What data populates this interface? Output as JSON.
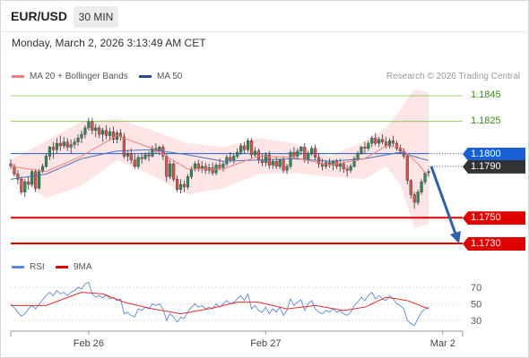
{
  "header": {
    "symbol": "EUR/USD",
    "timeframe": "30 MIN",
    "datetime": "Monday, March 2, 2026 3:13:49 AM CET"
  },
  "legend": {
    "ma20_label": "MA 20 + Bollinger Bands",
    "ma50_label": "MA 50",
    "research": "Research © 2026 Trading Central",
    "rsi_label": "RSI",
    "ma9_label": "9MA"
  },
  "colors": {
    "bullish": "#2e8b57",
    "bearish": "#d9534f",
    "ma20": "#f08080",
    "ma50": "#4a6fb5",
    "bollinger_fill": "#fde0e0",
    "resistance": "#7dc44a",
    "support": "#e00000",
    "pivot": "#1a5fd6",
    "last_price": "#333333",
    "arrow": "#3060a8",
    "rsi": "#5a8ad8",
    "rsi_ma": "#e03030"
  },
  "levels": [
    {
      "price": 1.1845,
      "label": "1.1845",
      "type": "resistance"
    },
    {
      "price": 1.1825,
      "label": "1.1825",
      "type": "resistance"
    },
    {
      "price": 1.18,
      "label": "1.1800",
      "type": "pivot"
    },
    {
      "price": 1.179,
      "label": "1.1790",
      "type": "last"
    },
    {
      "price": 1.175,
      "label": "1.1750",
      "type": "support"
    },
    {
      "price": 1.173,
      "label": "1.1730",
      "type": "support"
    }
  ],
  "arrow": {
    "from_price": 1.179,
    "to_price": 1.173
  },
  "chart_data": [
    {
      "type": "candlestick",
      "title": "EUR/USD 30 MIN",
      "ylim": [
        1.1716,
        1.1852
      ],
      "x_tick_labels": [
        "Feb 26",
        "Feb 27",
        "Mar 2"
      ],
      "x_tick_index": [
        22,
        72,
        122
      ],
      "ohlc": [
        [
          1.1792,
          1.17955,
          1.1788,
          1.179
        ],
        [
          1.179,
          1.1792,
          1.1782,
          1.1784
        ],
        [
          1.1784,
          1.1787,
          1.1776,
          1.178
        ],
        [
          1.178,
          1.1782,
          1.1768,
          1.177
        ],
        [
          1.177,
          1.178,
          1.1766,
          1.1778
        ],
        [
          1.1778,
          1.1782,
          1.1772,
          1.1776
        ],
        [
          1.1776,
          1.1788,
          1.1774,
          1.1786
        ],
        [
          1.1786,
          1.1788,
          1.177,
          1.1773
        ],
        [
          1.1773,
          1.1788,
          1.1772,
          1.1786
        ],
        [
          1.1786,
          1.1792,
          1.1785,
          1.179
        ],
        [
          1.179,
          1.18,
          1.1789,
          1.1798
        ],
        [
          1.1798,
          1.1806,
          1.1795,
          1.1805
        ],
        [
          1.1805,
          1.1809,
          1.1796,
          1.1803
        ],
        [
          1.1803,
          1.1812,
          1.18,
          1.1808
        ],
        [
          1.1808,
          1.1814,
          1.1802,
          1.1806
        ],
        [
          1.1806,
          1.1813,
          1.1804,
          1.1809
        ],
        [
          1.1809,
          1.1812,
          1.1802,
          1.1805
        ],
        [
          1.1805,
          1.1811,
          1.18,
          1.1807
        ],
        [
          1.1807,
          1.1812,
          1.1804,
          1.1809
        ],
        [
          1.1809,
          1.1815,
          1.1806,
          1.1812
        ],
        [
          1.1812,
          1.1818,
          1.1808,
          1.1815
        ],
        [
          1.1815,
          1.1822,
          1.1812,
          1.182
        ],
        [
          1.182,
          1.1828,
          1.1818,
          1.1825
        ],
        [
          1.1825,
          1.1828,
          1.1815,
          1.1818
        ],
        [
          1.1818,
          1.1823,
          1.1813,
          1.182
        ],
        [
          1.182,
          1.1822,
          1.1812,
          1.1815
        ],
        [
          1.1815,
          1.182,
          1.1809,
          1.1818
        ],
        [
          1.1818,
          1.1822,
          1.1811,
          1.1814
        ],
        [
          1.1814,
          1.182,
          1.181,
          1.1817
        ],
        [
          1.1817,
          1.1821,
          1.1808,
          1.1811
        ],
        [
          1.1811,
          1.1818,
          1.1808,
          1.1816
        ],
        [
          1.1816,
          1.1819,
          1.181,
          1.1813
        ],
        [
          1.1813,
          1.1816,
          1.1796,
          1.1798
        ],
        [
          1.1798,
          1.1803,
          1.1794,
          1.18
        ],
        [
          1.18,
          1.1804,
          1.1792,
          1.1795
        ],
        [
          1.1795,
          1.18,
          1.1788,
          1.179
        ],
        [
          1.179,
          1.1799,
          1.1788,
          1.1797
        ],
        [
          1.1797,
          1.18,
          1.1792,
          1.1796
        ],
        [
          1.1796,
          1.1801,
          1.1795,
          1.1799
        ],
        [
          1.1799,
          1.1802,
          1.1794,
          1.1798
        ],
        [
          1.1798,
          1.1806,
          1.1797,
          1.1804
        ],
        [
          1.1804,
          1.1808,
          1.18,
          1.1802
        ],
        [
          1.1802,
          1.1806,
          1.1799,
          1.1805
        ],
        [
          1.1805,
          1.1807,
          1.1795,
          1.1798
        ],
        [
          1.1798,
          1.18,
          1.1778,
          1.1782
        ],
        [
          1.1782,
          1.1795,
          1.178,
          1.1792
        ],
        [
          1.1792,
          1.1794,
          1.1778,
          1.178
        ],
        [
          1.178,
          1.1783,
          1.177,
          1.1772
        ],
        [
          1.1772,
          1.178,
          1.1769,
          1.1776
        ],
        [
          1.1776,
          1.1779,
          1.177,
          1.1774
        ],
        [
          1.1774,
          1.1784,
          1.1772,
          1.1782
        ],
        [
          1.1782,
          1.179,
          1.178,
          1.1788
        ],
        [
          1.1788,
          1.1794,
          1.1786,
          1.1792
        ],
        [
          1.1792,
          1.1795,
          1.1786,
          1.1788
        ],
        [
          1.1788,
          1.1794,
          1.1785,
          1.179
        ],
        [
          1.179,
          1.1793,
          1.1784,
          1.1787
        ],
        [
          1.1787,
          1.1792,
          1.1784,
          1.1789
        ],
        [
          1.1789,
          1.1793,
          1.1783,
          1.1785
        ],
        [
          1.1785,
          1.1793,
          1.1783,
          1.1791
        ],
        [
          1.1791,
          1.1796,
          1.1787,
          1.1789
        ],
        [
          1.1789,
          1.1794,
          1.1786,
          1.1792
        ],
        [
          1.1792,
          1.1799,
          1.179,
          1.1797
        ],
        [
          1.1797,
          1.1801,
          1.1793,
          1.1795
        ],
        [
          1.1795,
          1.18,
          1.1792,
          1.1798
        ],
        [
          1.1798,
          1.1804,
          1.1796,
          1.1801
        ],
        [
          1.1801,
          1.1808,
          1.1799,
          1.1806
        ],
        [
          1.1806,
          1.1809,
          1.18,
          1.1803
        ],
        [
          1.1803,
          1.1812,
          1.1801,
          1.181
        ],
        [
          1.181,
          1.1812,
          1.1796,
          1.1799
        ],
        [
          1.1799,
          1.1805,
          1.1797,
          1.1802
        ],
        [
          1.1802,
          1.1804,
          1.1792,
          1.1795
        ],
        [
          1.1795,
          1.18,
          1.179,
          1.1793
        ],
        [
          1.1793,
          1.1801,
          1.179,
          1.1799
        ],
        [
          1.1799,
          1.1802,
          1.1788,
          1.1791
        ],
        [
          1.1791,
          1.1796,
          1.1788,
          1.1794
        ],
        [
          1.1794,
          1.1798,
          1.1788,
          1.179
        ],
        [
          1.179,
          1.1796,
          1.1788,
          1.1795
        ],
        [
          1.1795,
          1.1798,
          1.1785,
          1.1787
        ],
        [
          1.1787,
          1.1792,
          1.1784,
          1.179
        ],
        [
          1.179,
          1.1803,
          1.1788,
          1.1801
        ],
        [
          1.1801,
          1.1805,
          1.1796,
          1.1798
        ],
        [
          1.1798,
          1.1804,
          1.1795,
          1.1802
        ],
        [
          1.1802,
          1.1806,
          1.1799,
          1.1805
        ],
        [
          1.1805,
          1.1808,
          1.1793,
          1.1795
        ],
        [
          1.1795,
          1.1802,
          1.1792,
          1.18
        ],
        [
          1.18,
          1.1806,
          1.1798,
          1.1804
        ],
        [
          1.1804,
          1.1807,
          1.1795,
          1.1797
        ],
        [
          1.1797,
          1.18,
          1.1789,
          1.1792
        ],
        [
          1.1792,
          1.1796,
          1.1787,
          1.179
        ],
        [
          1.179,
          1.1795,
          1.1788,
          1.1793
        ],
        [
          1.1793,
          1.1796,
          1.1789,
          1.1791
        ],
        [
          1.1791,
          1.1795,
          1.1787,
          1.1794
        ],
        [
          1.1794,
          1.1796,
          1.1788,
          1.179
        ],
        [
          1.179,
          1.1796,
          1.1786,
          1.1792
        ],
        [
          1.1792,
          1.1794,
          1.1785,
          1.1788
        ],
        [
          1.1788,
          1.1791,
          1.1782,
          1.1787
        ],
        [
          1.1787,
          1.1792,
          1.1785,
          1.179
        ],
        [
          1.179,
          1.1798,
          1.1789,
          1.1796
        ],
        [
          1.1796,
          1.1802,
          1.1794,
          1.18
        ],
        [
          1.18,
          1.1806,
          1.1799,
          1.1805
        ],
        [
          1.1805,
          1.1809,
          1.18,
          1.1804
        ],
        [
          1.1804,
          1.181,
          1.1802,
          1.1808
        ],
        [
          1.1808,
          1.1814,
          1.1805,
          1.1812
        ],
        [
          1.1812,
          1.1816,
          1.1806,
          1.1808
        ],
        [
          1.1808,
          1.1813,
          1.1805,
          1.1811
        ],
        [
          1.1811,
          1.1815,
          1.1807,
          1.1809
        ],
        [
          1.1809,
          1.1813,
          1.1804,
          1.1806
        ],
        [
          1.1806,
          1.1812,
          1.1804,
          1.181
        ],
        [
          1.181,
          1.1814,
          1.1806,
          1.1808
        ],
        [
          1.1808,
          1.181,
          1.1802,
          1.1804
        ],
        [
          1.1804,
          1.1807,
          1.18,
          1.1802
        ],
        [
          1.1802,
          1.1804,
          1.1796,
          1.1798
        ],
        [
          1.1798,
          1.1799,
          1.1776,
          1.1779
        ],
        [
          1.1779,
          1.178,
          1.1765,
          1.1768
        ],
        [
          1.1768,
          1.177,
          1.1757,
          1.1762
        ],
        [
          1.1762,
          1.1772,
          1.176,
          1.177
        ],
        [
          1.177,
          1.178,
          1.1768,
          1.1778
        ],
        [
          1.1778,
          1.1786,
          1.1776,
          1.1785
        ],
        [
          1.1785,
          1.1788,
          1.1782,
          1.1786
        ]
      ],
      "ma20": [
        [
          0,
          1.179
        ],
        [
          10,
          1.1786
        ],
        [
          20,
          1.1798
        ],
        [
          30,
          1.1814
        ],
        [
          40,
          1.1804
        ],
        [
          50,
          1.1788
        ],
        [
          60,
          1.1788
        ],
        [
          70,
          1.1798
        ],
        [
          80,
          1.1797
        ],
        [
          90,
          1.1791
        ],
        [
          100,
          1.1796
        ],
        [
          106,
          1.1806
        ],
        [
          110,
          1.1805
        ],
        [
          115,
          1.1792
        ],
        [
          118,
          1.1782
        ],
        [
          122,
          1.178
        ]
      ],
      "ma50": [
        [
          0,
          1.178
        ],
        [
          10,
          1.1784
        ],
        [
          20,
          1.1796
        ],
        [
          30,
          1.1802
        ],
        [
          40,
          1.1803
        ],
        [
          50,
          1.1799
        ],
        [
          60,
          1.1794
        ],
        [
          70,
          1.1795
        ],
        [
          80,
          1.1796
        ],
        [
          90,
          1.1794
        ],
        [
          100,
          1.1796
        ],
        [
          110,
          1.1801
        ],
        [
          116,
          1.1796
        ],
        [
          122,
          1.1792
        ]
      ],
      "bollinger_upper": [
        [
          0,
          1.1795
        ],
        [
          10,
          1.181
        ],
        [
          20,
          1.1825
        ],
        [
          30,
          1.1827
        ],
        [
          40,
          1.1818
        ],
        [
          50,
          1.1808
        ],
        [
          60,
          1.1805
        ],
        [
          70,
          1.1812
        ],
        [
          80,
          1.1808
        ],
        [
          90,
          1.1798
        ],
        [
          100,
          1.181
        ],
        [
          106,
          1.182
        ],
        [
          110,
          1.1834
        ],
        [
          114,
          1.185
        ],
        [
          118,
          1.1848
        ],
        [
          122,
          1.18
        ]
      ],
      "bollinger_lower": [
        [
          0,
          1.1785
        ],
        [
          10,
          1.1765
        ],
        [
          20,
          1.1775
        ],
        [
          30,
          1.1795
        ],
        [
          40,
          1.1783
        ],
        [
          50,
          1.1768
        ],
        [
          60,
          1.1773
        ],
        [
          70,
          1.1784
        ],
        [
          80,
          1.1785
        ],
        [
          90,
          1.1782
        ],
        [
          100,
          1.178
        ],
        [
          106,
          1.179
        ],
        [
          110,
          1.1776
        ],
        [
          114,
          1.1742
        ],
        [
          118,
          1.1745
        ],
        [
          122,
          1.176
        ]
      ]
    },
    {
      "type": "line",
      "title": "RSI",
      "ylim": [
        20,
        80
      ],
      "y_ticks": [
        70,
        50,
        30
      ],
      "series": [
        {
          "name": "RSI",
          "values": [
            50,
            45,
            40,
            35,
            38,
            44,
            48,
            44,
            49,
            55,
            60,
            64,
            60,
            66,
            62,
            64,
            60,
            64,
            66,
            70,
            68,
            74,
            76,
            62,
            58,
            60,
            57,
            61,
            56,
            58,
            54,
            56,
            38,
            40,
            36,
            34,
            44,
            42,
            46,
            44,
            50,
            48,
            50,
            44,
            30,
            38,
            34,
            28,
            34,
            32,
            40,
            46,
            50,
            46,
            48,
            44,
            46,
            44,
            50,
            46,
            50,
            54,
            50,
            52,
            56,
            60,
            54,
            62,
            44,
            48,
            42,
            40,
            46,
            38,
            44,
            40,
            46,
            36,
            42,
            56,
            48,
            52,
            55,
            42,
            50,
            54,
            44,
            40,
            38,
            42,
            40,
            44,
            40,
            42,
            38,
            36,
            40,
            48,
            52,
            58,
            54,
            60,
            64,
            56,
            60,
            56,
            54,
            60,
            56,
            50,
            48,
            44,
            30,
            26,
            24,
            32,
            40,
            44,
            46
          ]
        },
        {
          "name": "9MA",
          "values": [
            [
              0,
              48
            ],
            [
              10,
              48
            ],
            [
              20,
              64
            ],
            [
              26,
              62
            ],
            [
              32,
              52
            ],
            [
              40,
              44
            ],
            [
              48,
              38
            ],
            [
              56,
              44
            ],
            [
              64,
              52
            ],
            [
              70,
              52
            ],
            [
              78,
              44
            ],
            [
              86,
              48
            ],
            [
              94,
              42
            ],
            [
              100,
              46
            ],
            [
              106,
              58
            ],
            [
              112,
              54
            ],
            [
              118,
              44
            ],
            [
              122,
              40
            ]
          ]
        }
      ],
      "grid": true
    }
  ]
}
